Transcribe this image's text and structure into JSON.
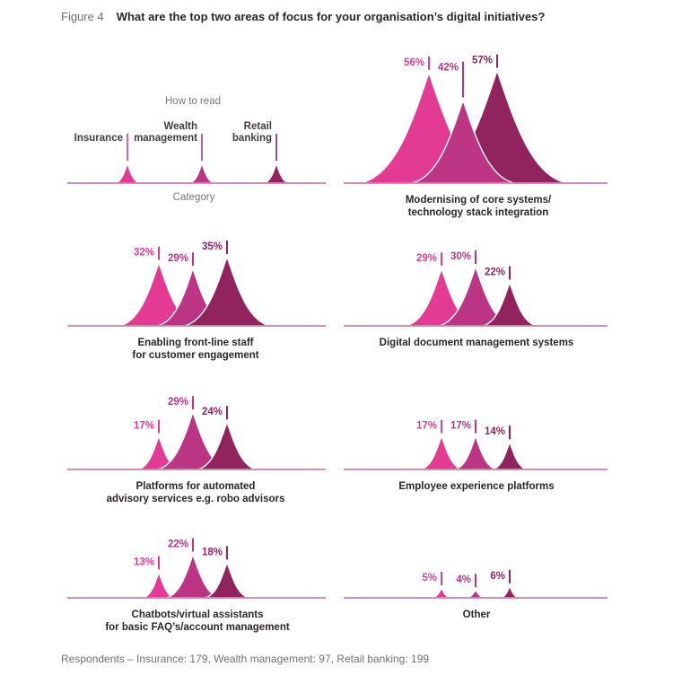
{
  "figure": {
    "label": "Figure 4",
    "title": "What are the top two areas of focus for your organisation’s digital initiatives?"
  },
  "colors": {
    "insurance": "#E33A93",
    "wealth_management": "#BC3484",
    "retail_banking": "#91235F",
    "baseline": "#C97FA7",
    "heading_gray": "#6F7074",
    "text_dark": "#2B2728"
  },
  "legend": {
    "how_to_read": "How to read",
    "category": "Category",
    "series": [
      {
        "name": "Insurance"
      },
      {
        "name": "Wealth management"
      },
      {
        "name": "Retail banking"
      }
    ]
  },
  "chart_data": {
    "type": "bar",
    "variant": "overlapping triangle peaks, small multiples",
    "unit": "percent",
    "series_names": [
      "Insurance",
      "Wealth management",
      "Retail banking"
    ],
    "charts": [
      {
        "label_lines": [
          "Modernising of core systems/",
          "technology stack integration"
        ],
        "values": [
          56,
          42,
          57
        ]
      },
      {
        "label_lines": [
          "Enabling front-line staff",
          "for customer engagement"
        ],
        "values": [
          32,
          29,
          35
        ]
      },
      {
        "label_lines": [
          "Digital document management systems"
        ],
        "values": [
          29,
          30,
          22
        ]
      },
      {
        "label_lines": [
          "Platforms for automated",
          "advisory services e.g. robo advisors"
        ],
        "values": [
          17,
          29,
          24
        ]
      },
      {
        "label_lines": [
          "Employee experience platforms"
        ],
        "values": [
          17,
          17,
          14
        ]
      },
      {
        "label_lines": [
          "Chatbots/virtual assistants",
          "for basic FAQ’s/account management"
        ],
        "values": [
          13,
          22,
          18
        ]
      },
      {
        "label_lines": [
          "Other"
        ],
        "values": [
          5,
          4,
          6
        ]
      }
    ],
    "footnote": "Respondents – Insurance: 179, Wealth management: 97, Retail banking: 199"
  }
}
